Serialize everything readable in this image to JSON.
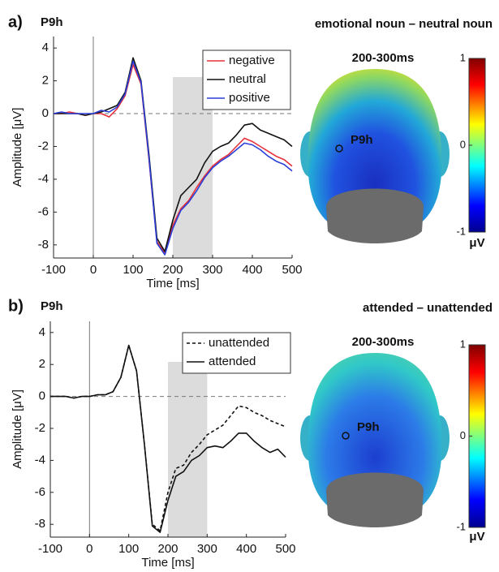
{
  "chart_data": [
    {
      "type": "line",
      "panel": "a)",
      "channel": "P9h",
      "contrast": "emotional noun – neutral noun",
      "x_label": "Time [ms]",
      "y_label": "Amplitude [μV]",
      "x": [
        -100,
        -80,
        -60,
        -40,
        -20,
        0,
        20,
        40,
        60,
        80,
        100,
        120,
        140,
        160,
        180,
        200,
        220,
        240,
        260,
        280,
        300,
        320,
        340,
        360,
        380,
        400,
        420,
        440,
        460,
        480,
        500
      ],
      "series": [
        {
          "name": "negative",
          "color": "#e8303a",
          "dashed": false,
          "values": [
            0,
            0,
            0.1,
            0,
            -0.1,
            0,
            0,
            -0.2,
            0.3,
            1.1,
            3.0,
            1.8,
            -2.8,
            -7.8,
            -8.5,
            -6.8,
            -5.8,
            -5.3,
            -4.5,
            -3.8,
            -3.2,
            -2.8,
            -2.5,
            -2.0,
            -1.5,
            -1.7,
            -2.0,
            -2.3,
            -2.6,
            -2.8,
            -3.2
          ]
        },
        {
          "name": "neutral",
          "color": "#111111",
          "dashed": false,
          "values": [
            0,
            0,
            0,
            0,
            -0.1,
            0,
            0.1,
            0.3,
            0.5,
            1.3,
            3.4,
            2.0,
            -2.5,
            -7.6,
            -8.4,
            -6.5,
            -5.0,
            -4.5,
            -4.0,
            -3.0,
            -2.3,
            -2.0,
            -1.8,
            -1.3,
            -0.7,
            -0.6,
            -1.0,
            -1.2,
            -1.4,
            -1.6,
            -2.0
          ]
        },
        {
          "name": "positive",
          "color": "#2b3fd8",
          "dashed": false,
          "values": [
            0,
            0.1,
            0,
            0,
            0,
            0,
            0.2,
            0.1,
            0.4,
            1.2,
            3.2,
            1.9,
            -2.7,
            -7.9,
            -8.6,
            -7.0,
            -5.9,
            -5.4,
            -4.7,
            -3.9,
            -3.3,
            -2.9,
            -2.6,
            -2.2,
            -1.8,
            -1.9,
            -2.2,
            -2.6,
            -2.9,
            -3.1,
            -3.5
          ]
        }
      ],
      "xlim": [
        -100,
        500
      ],
      "ylim": [
        -8.8,
        4.7
      ],
      "xticks": [
        -100,
        0,
        100,
        200,
        300,
        400,
        500
      ],
      "yticks": [
        -8,
        -6,
        -4,
        -2,
        0,
        2,
        4
      ],
      "shaded_range": [
        200,
        300
      ],
      "topomap": {
        "title": "200-300ms",
        "electrode": "P9h",
        "colorbar_ticks": [
          1,
          0,
          -1
        ],
        "colorbar_label": "μV"
      }
    },
    {
      "type": "line",
      "panel": "b)",
      "channel": "P9h",
      "contrast": "attended – unattended",
      "x_label": "Time [ms]",
      "y_label": "Amplitude [μV]",
      "x": [
        -100,
        -80,
        -60,
        -40,
        -20,
        0,
        20,
        40,
        60,
        80,
        100,
        120,
        140,
        160,
        180,
        200,
        220,
        240,
        260,
        280,
        300,
        320,
        340,
        360,
        380,
        400,
        420,
        440,
        460,
        480,
        500
      ],
      "series": [
        {
          "name": "unattended",
          "color": "#111111",
          "dashed": true,
          "values": [
            0,
            0,
            0,
            -0.1,
            0,
            0,
            0.1,
            0.1,
            0.3,
            1.2,
            3.2,
            1.6,
            -3.0,
            -8.0,
            -8.4,
            -6.0,
            -4.5,
            -4.3,
            -3.5,
            -3.0,
            -2.4,
            -2.1,
            -1.8,
            -1.2,
            -0.6,
            -0.7,
            -1.0,
            -1.2,
            -1.5,
            -1.7,
            -1.9
          ]
        },
        {
          "name": "attended",
          "color": "#111111",
          "dashed": false,
          "values": [
            0,
            0,
            0,
            -0.1,
            0,
            0,
            0.1,
            0.1,
            0.3,
            1.2,
            3.2,
            1.6,
            -3.0,
            -8.1,
            -8.5,
            -6.5,
            -5.0,
            -4.7,
            -4.0,
            -3.7,
            -3.2,
            -3.1,
            -3.2,
            -2.8,
            -2.3,
            -2.3,
            -2.8,
            -3.2,
            -3.5,
            -3.3,
            -3.8
          ]
        }
      ],
      "xlim": [
        -100,
        500
      ],
      "ylim": [
        -8.8,
        4.7
      ],
      "xticks": [
        -100,
        0,
        100,
        200,
        300,
        400,
        500
      ],
      "yticks": [
        -8,
        -6,
        -4,
        -2,
        0,
        2,
        4
      ],
      "shaded_range": [
        200,
        300
      ],
      "topomap": {
        "title": "200-300ms",
        "electrode": "P9h",
        "colorbar_ticks": [
          1,
          0,
          -1
        ],
        "colorbar_label": "μV"
      }
    }
  ]
}
